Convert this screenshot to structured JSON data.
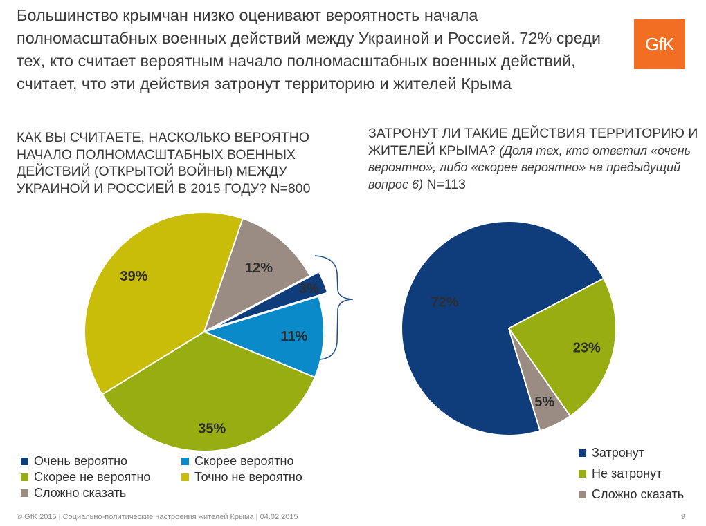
{
  "headline": "Большинство крымчан низко оценивают вероятность начала полномасштабных военных действий между Украиной и Россией. 72% среди тех, кто считает вероятным начало полномасштабных военных действий, считает, что эти действия затронут территорию и жителей Крыма",
  "logo_text": "GfK",
  "colors": {
    "very_likely": "#0f3c7a",
    "rather_likely": "#0b8ac9",
    "rather_unlikely": "#98ad12",
    "definitely_unlikely": "#c9bd09",
    "hard_to_say": "#9a8c82",
    "affected": "#0f3c7a",
    "not_affected": "#98ad12",
    "bracket": "#1d4f8c"
  },
  "left_question": "КАК ВЫ СЧИТАЕТЕ, НАСКОЛЬКО ВЕРОЯТНО НАЧАЛО ПОЛНОМАСШТАБНЫХ ВОЕННЫХ ДЕЙСТВИЙ (ОТКРЫТОЙ ВОЙНЫ) МЕЖДУ УКРАИНОЙ И РОССИЕЙ В 2015 ГОДУ? N=800",
  "right_question": {
    "main": "ЗАТРОНУТ ЛИ ТАКИЕ ДЕЙСТВИЯ ТЕРРИТОРИЮ И ЖИТЕЛЕЙ КРЫМА?",
    "note": "(Доля тех, кто ответил «очень вероятно», либо «скорее вероятно» на предыдущий вопрос 6)",
    "n": "N=113"
  },
  "chart_data": [
    {
      "type": "pie",
      "title": "КАК ВЫ СЧИТАЕТЕ, НАСКОЛЬКО ВЕРОЯТНО НАЧАЛО ПОЛНОМАСШТАБНЫХ ВОЕННЫХ ДЕЙСТВИЙ (ОТКРЫТОЙ ВОЙНЫ) МЕЖДУ УКРАИНОЙ И РОССИЕЙ В 2015 ГОДУ? N=800",
      "slices": [
        {
          "label": "Очень вероятно",
          "value": 3,
          "display": "3%",
          "color_key": "very_likely"
        },
        {
          "label": "Скорее вероятно",
          "value": 11,
          "display": "11%",
          "color_key": "rather_likely"
        },
        {
          "label": "Скорее не вероятно",
          "value": 35,
          "display": "35%",
          "color_key": "rather_unlikely"
        },
        {
          "label": "Точно не вероятно",
          "value": 39,
          "display": "39%",
          "color_key": "definitely_unlikely"
        },
        {
          "label": "Сложно сказать",
          "value": 12,
          "display": "12%",
          "color_key": "hard_to_say"
        }
      ],
      "legend_position": "bottom"
    },
    {
      "type": "pie",
      "title": "ЗАТРОНУТ ЛИ ТАКИЕ ДЕЙСТВИЯ ТЕРРИТОРИЮ И ЖИТЕЛЕЙ КРЫМА? (Доля тех, кто ответил «очень вероятно», либо «скорее вероятно» на предыдущий вопрос 6) N=113",
      "slices": [
        {
          "label": "Затронут",
          "value": 72,
          "display": "72%",
          "color_key": "affected"
        },
        {
          "label": "Не затронут",
          "value": 23,
          "display": "23%",
          "color_key": "not_affected"
        },
        {
          "label": "Сложно сказать",
          "value": 5,
          "display": "5%",
          "color_key": "hard_to_say"
        }
      ],
      "legend_position": "bottom-right"
    }
  ],
  "legend_left": [
    "Очень вероятно",
    "Скорее вероятно",
    "Скорее не вероятно",
    "Точно не вероятно",
    "Сложно сказать"
  ],
  "legend_right": [
    "Затронут",
    "Не затронут",
    "Сложно сказать"
  ],
  "footer": "© GfK 2015 | Социально-политические настроения жителей Крыма | 04.02.2015",
  "page_number": "9"
}
